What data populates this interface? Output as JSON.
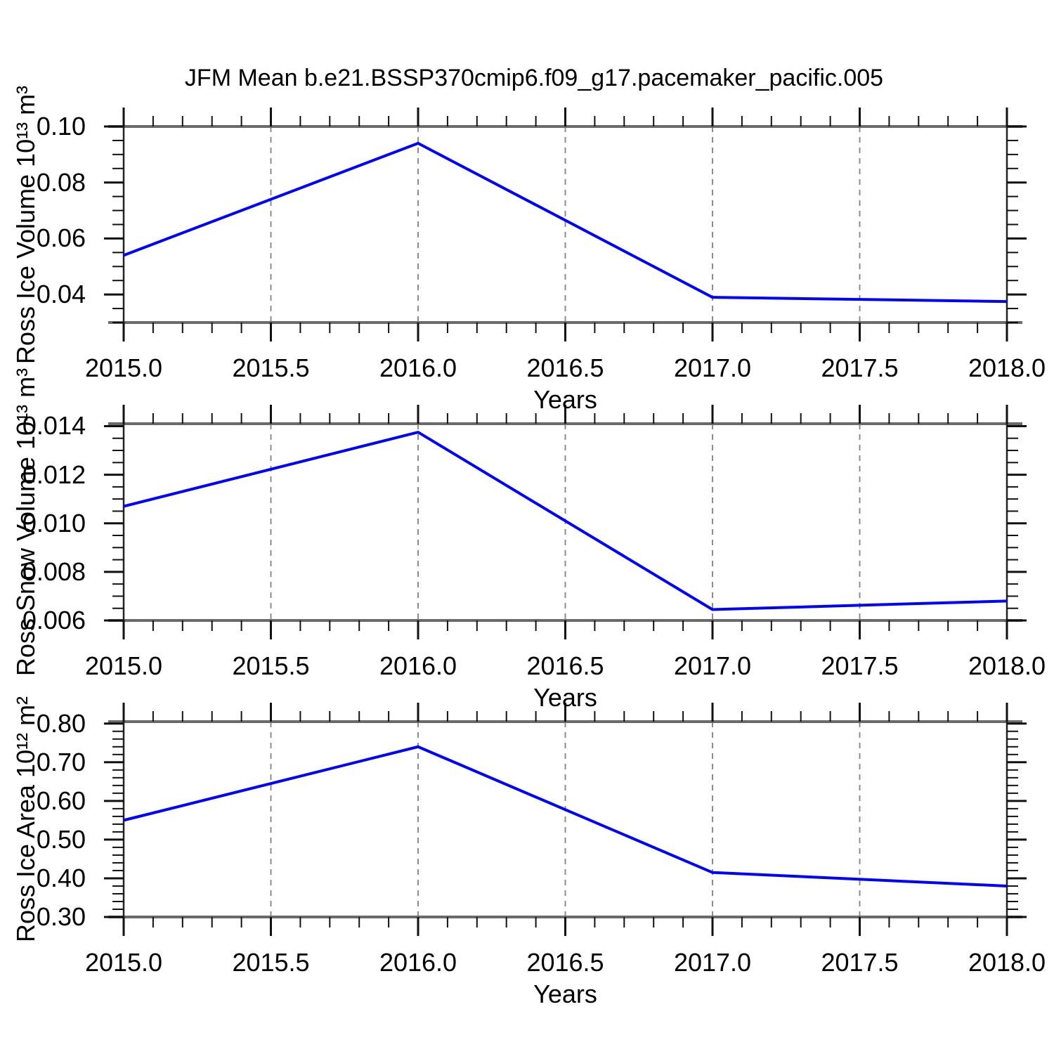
{
  "figure": {
    "title": "JFM Mean b.e21.BSSP370cmip6.f09_g17.pacemaker_pacific.005",
    "background": "#ffffff"
  },
  "colors": {
    "line": "#0000ff",
    "gridline": "#8c8c8c",
    "frame_horizontal": "#6a6a6a",
    "frame_vertical": "#222222",
    "tick": "#111111",
    "text": "#000000"
  },
  "x_axis": {
    "label": "Years",
    "range": [
      2015.0,
      2018.0
    ],
    "tick_values": [
      2015.0,
      2015.5,
      2016.0,
      2016.5,
      2017.0,
      2017.5,
      2018.0
    ],
    "tick_labels": [
      "2015.0",
      "2015.5",
      "2016.0",
      "2016.5",
      "2017.0",
      "2017.5",
      "2018.0"
    ],
    "minor_step": 0.1,
    "gridline_values": [
      2015.5,
      2016.0,
      2016.5,
      2017.0,
      2017.5
    ],
    "grid_style": "dashed"
  },
  "chart_data": [
    {
      "type": "line",
      "ylabel": "Ross Ice Volume 10¹³ m³",
      "xlabel": "Years",
      "x": [
        2015.0,
        2016.0,
        2017.0,
        2018.0
      ],
      "values": [
        0.054,
        0.094,
        0.039,
        0.0375
      ],
      "ylim": [
        0.03,
        0.1
      ],
      "ytick_values": [
        0.04,
        0.06,
        0.08,
        0.1
      ],
      "ytick_labels": [
        "0.04",
        "0.06",
        "0.08",
        "0.10"
      ],
      "y_minor_step": 0.005,
      "legend": "none"
    },
    {
      "type": "line",
      "ylabel": "Ross Snow Volume 10¹³ m³",
      "xlabel": "Years",
      "x": [
        2015.0,
        2016.0,
        2017.0,
        2018.0
      ],
      "values": [
        0.0107,
        0.01375,
        0.00645,
        0.0068
      ],
      "ylim": [
        0.006,
        0.0141
      ],
      "ytick_values": [
        0.006,
        0.008,
        0.01,
        0.012,
        0.014
      ],
      "ytick_labels": [
        "0.006",
        "0.008",
        "0.010",
        "0.012",
        "0.014"
      ],
      "y_minor_step": 0.0005,
      "legend": "none"
    },
    {
      "type": "line",
      "ylabel": "Ross Ice Area 10¹² m²",
      "xlabel": "Years",
      "x": [
        2015.0,
        2016.0,
        2017.0,
        2018.0
      ],
      "values": [
        0.55,
        0.74,
        0.415,
        0.38
      ],
      "ylim": [
        0.3,
        0.805
      ],
      "ytick_values": [
        0.3,
        0.4,
        0.5,
        0.6,
        0.7,
        0.8
      ],
      "ytick_labels": [
        "0.30",
        "0.40",
        "0.50",
        "0.60",
        "0.70",
        "0.80"
      ],
      "y_minor_step": 0.02,
      "legend": "none"
    }
  ]
}
